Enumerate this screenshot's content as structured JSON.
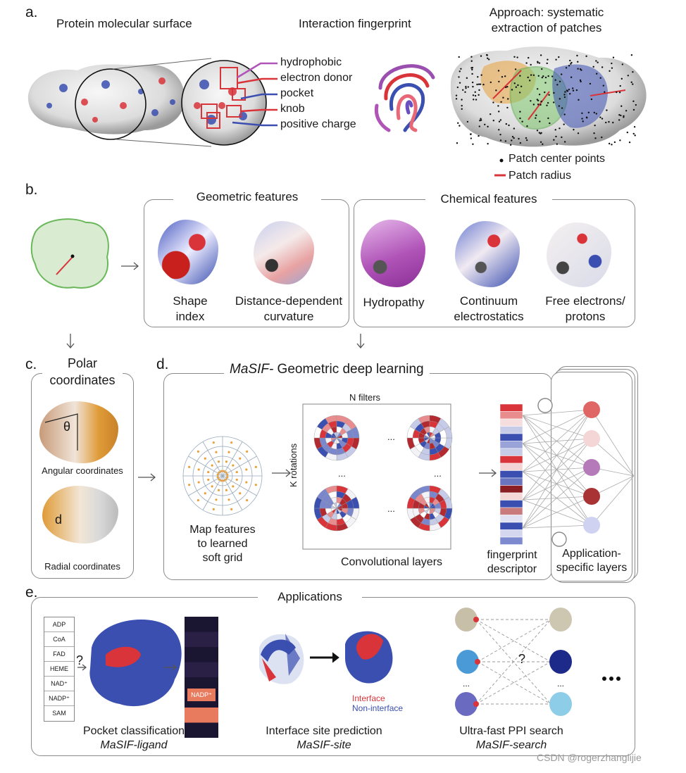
{
  "panels": {
    "a": {
      "letter": "a.",
      "title_surface": "Protein molecular surface",
      "title_fingerprint": "Interaction fingerprint",
      "title_approach_1": "Approach: systematic",
      "title_approach_2": "extraction of patches",
      "callouts": [
        {
          "label": "hydrophobic",
          "color": "#b054b8"
        },
        {
          "label": "electron donor",
          "color": "#d9343a"
        },
        {
          "label": "pocket",
          "color": "#3c4fb0"
        },
        {
          "label": "knob",
          "color": "#d9343a"
        },
        {
          "label": "positive charge",
          "color": "#3c4fb0"
        }
      ],
      "legend_center": "Patch center points",
      "legend_radius": "Patch radius"
    },
    "b": {
      "letter": "b.",
      "geometric_title": "Geometric features",
      "chemical_title": "Chemical features",
      "features": [
        {
          "line1": "Shape",
          "line2": "index"
        },
        {
          "line1": "Distance-dependent",
          "line2": "curvature"
        },
        {
          "line1": "Hydropathy",
          "line2": ""
        },
        {
          "line1": "Continuum",
          "line2": "electrostatics"
        },
        {
          "line1": "Free electrons/",
          "line2": "protons"
        }
      ]
    },
    "c": {
      "letter": "c.",
      "title_1": "Polar",
      "title_2": "coordinates",
      "theta": "θ",
      "d": "d",
      "angular": "Angular coordinates",
      "radial": "Radial coordinates"
    },
    "d": {
      "letter": "d.",
      "title_italic": "MaSIF-",
      "title_rest": " Geometric deep learning",
      "n_filters": "N filters",
      "k_rotations": "K rotations",
      "ellipsis": "...",
      "map_1": "Map features",
      "map_2": "to learned",
      "map_3": "soft grid",
      "conv": "Convolutional layers",
      "fp_1": "fingerprint",
      "fp_2": "descriptor",
      "app_1": "Application-",
      "app_2": "specific layers"
    },
    "e": {
      "letter": "e.",
      "title": "Applications",
      "ligands": [
        "ADP",
        "CoA",
        "FAD",
        "HEME",
        "NAD⁺",
        "NADP⁺",
        "SAM"
      ],
      "question": "?",
      "nadp_label": "NADP⁺",
      "interface": "Interface",
      "non_interface": "Non-interface",
      "pocket_1": "Pocket classification",
      "pocket_2": "MaSIF-ligand",
      "site_1": "Interface site prediction",
      "site_2": "MaSIF-site",
      "search_1": "Ultra-fast PPI search",
      "search_2": "MaSIF-search",
      "more": "..."
    }
  },
  "watermark": "CSDN @rogerzhanglijie",
  "colors": {
    "red": "#d9343a",
    "blue": "#3a4fb0",
    "purple": "#b054b8",
    "orange": "#e8a13c",
    "green": "#7cc56a"
  }
}
